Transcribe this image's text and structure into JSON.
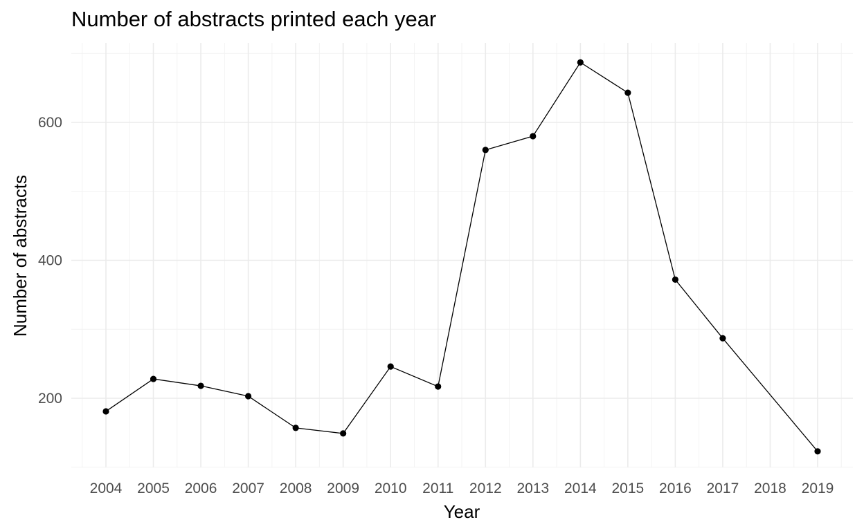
{
  "chart_data": {
    "type": "line",
    "title": "Number of abstracts printed each year",
    "xlabel": "Year",
    "ylabel": "Number of abstracts",
    "x": [
      2004,
      2005,
      2006,
      2007,
      2008,
      2009,
      2010,
      2011,
      2012,
      2013,
      2014,
      2015,
      2016,
      2017,
      2019
    ],
    "series": [
      {
        "values": [
          181,
          228,
          218,
          203,
          157,
          149,
          246,
          217,
          560,
          580,
          687,
          643,
          372,
          287,
          123
        ]
      }
    ],
    "xticks": [
      "2004",
      "2005",
      "2006",
      "2007",
      "2008",
      "2009",
      "2010",
      "2011",
      "2012",
      "2013",
      "2014",
      "2015",
      "2016",
      "2017",
      "2018",
      "2019"
    ],
    "yticks": [
      200,
      400,
      600
    ],
    "xlim": [
      2003.5,
      2019.5
    ],
    "ylim": [
      100,
      710
    ],
    "grid": true,
    "markers": true,
    "line_color": "#000000"
  }
}
